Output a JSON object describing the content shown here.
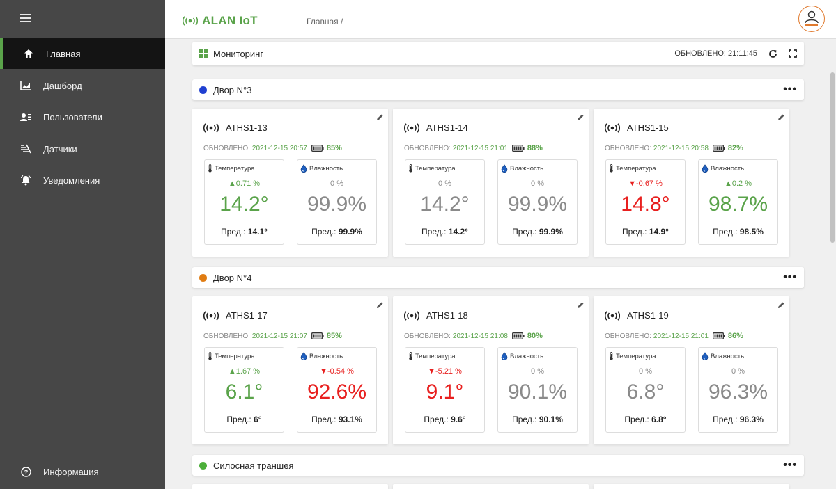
{
  "app": {
    "brand": "ALAN IoT",
    "breadcrumb": "Главная /"
  },
  "colors": {
    "accent": "#5aa34a",
    "up": "#5aa34a",
    "down": "#e8201f",
    "neutral": "#8a8a8a"
  },
  "sidebar": {
    "items": [
      {
        "label": "Главная",
        "icon": "home-icon"
      },
      {
        "label": "Дашборд",
        "icon": "chart-icon"
      },
      {
        "label": "Пользователи",
        "icon": "users-icon"
      },
      {
        "label": "Датчики",
        "icon": "sensor-icon"
      },
      {
        "label": "Уведомления",
        "icon": "bell-icon"
      }
    ],
    "info": "Информация"
  },
  "monitoring": {
    "title": "Мониторинг",
    "updated": "ОБНОВЛЕНО: 21:11:45"
  },
  "groups": [
    {
      "name": "Двор N°3",
      "color": "#1f3fd1"
    },
    {
      "name": "Двор N°4",
      "color": "#e07c12"
    },
    {
      "name": "Силосная траншея",
      "color": "#4caf3a"
    }
  ],
  "labels": {
    "updated": "ОБНОВЛЕНО:",
    "temp": "Температура",
    "hum": "Влажность",
    "prev": "Пред.:"
  },
  "devices": [
    {
      "name": "ATHS1-13",
      "ts": "2021-12-15 20:57",
      "battery": "85%",
      "temp": {
        "delta": "▲0.71 %",
        "trend": "up",
        "value": "14.2°",
        "prev": "14.1°"
      },
      "hum": {
        "delta": "0 %",
        "trend": "neutral",
        "value": "99.9%",
        "prev": "99.9%"
      }
    },
    {
      "name": "ATHS1-14",
      "ts": "2021-12-15 21:01",
      "battery": "88%",
      "temp": {
        "delta": "0 %",
        "trend": "neutral",
        "value": "14.2°",
        "prev": "14.2°"
      },
      "hum": {
        "delta": "0 %",
        "trend": "neutral",
        "value": "99.9%",
        "prev": "99.9%"
      }
    },
    {
      "name": "ATHS1-15",
      "ts": "2021-12-15 20:58",
      "battery": "82%",
      "temp": {
        "delta": "▼-0.67 %",
        "trend": "down",
        "value": "14.8°",
        "prev": "14.9°"
      },
      "hum": {
        "delta": "▲0.2 %",
        "trend": "up",
        "value": "98.7%",
        "prev": "98.5%"
      }
    },
    {
      "name": "ATHS1-17",
      "ts": "2021-12-15 21:07",
      "battery": "85%",
      "temp": {
        "delta": "▲1.67 %",
        "trend": "up",
        "value": "6.1°",
        "prev": "6°"
      },
      "hum": {
        "delta": "▼-0.54 %",
        "trend": "down",
        "value": "92.6%",
        "prev": "93.1%"
      }
    },
    {
      "name": "ATHS1-18",
      "ts": "2021-12-15 21:08",
      "battery": "80%",
      "temp": {
        "delta": "▼-5.21 %",
        "trend": "down",
        "value": "9.1°",
        "prev": "9.6°"
      },
      "hum": {
        "delta": "0 %",
        "trend": "neutral",
        "value": "90.1%",
        "prev": "90.1%"
      }
    },
    {
      "name": "ATHS1-19",
      "ts": "2021-12-15 21:01",
      "battery": "86%",
      "temp": {
        "delta": "0 %",
        "trend": "neutral",
        "value": "6.8°",
        "prev": "6.8°"
      },
      "hum": {
        "delta": "0 %",
        "trend": "neutral",
        "value": "96.3%",
        "prev": "96.3%"
      }
    }
  ]
}
